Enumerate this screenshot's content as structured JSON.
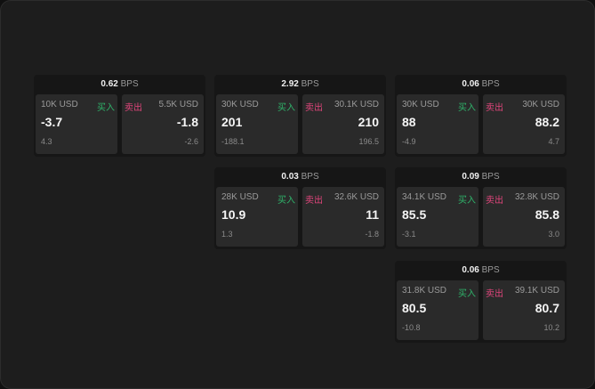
{
  "labels": {
    "buy": "买入",
    "sell": "卖出",
    "unit": "BPS"
  },
  "cards": [
    {
      "bps": "0.62",
      "buy": {
        "size": "10K USD",
        "price": "-3.7",
        "change": "4.3"
      },
      "sell": {
        "size": "5.5K USD",
        "price": "-1.8",
        "change": "-2.6"
      }
    },
    {
      "bps": "2.92",
      "buy": {
        "size": "30K USD",
        "price": "201",
        "change": "-188.1"
      },
      "sell": {
        "size": "30.1K USD",
        "price": "210",
        "change": "196.5"
      }
    },
    {
      "bps": "0.06",
      "buy": {
        "size": "30K USD",
        "price": "88",
        "change": "-4.9"
      },
      "sell": {
        "size": "30K USD",
        "price": "88.2",
        "change": "4.7"
      }
    },
    {
      "bps": "0.03",
      "buy": {
        "size": "28K USD",
        "price": "10.9",
        "change": "1.3"
      },
      "sell": {
        "size": "32.6K USD",
        "price": "11",
        "change": "-1.8"
      }
    },
    {
      "bps": "0.09",
      "buy": {
        "size": "34.1K USD",
        "price": "85.5",
        "change": "-3.1"
      },
      "sell": {
        "size": "32.8K USD",
        "price": "85.8",
        "change": "3.0"
      }
    },
    {
      "bps": "0.06",
      "buy": {
        "size": "31.8K USD",
        "price": "80.5",
        "change": "-10.8"
      },
      "sell": {
        "size": "39.1K USD",
        "price": "80.7",
        "change": "10.2"
      }
    }
  ]
}
